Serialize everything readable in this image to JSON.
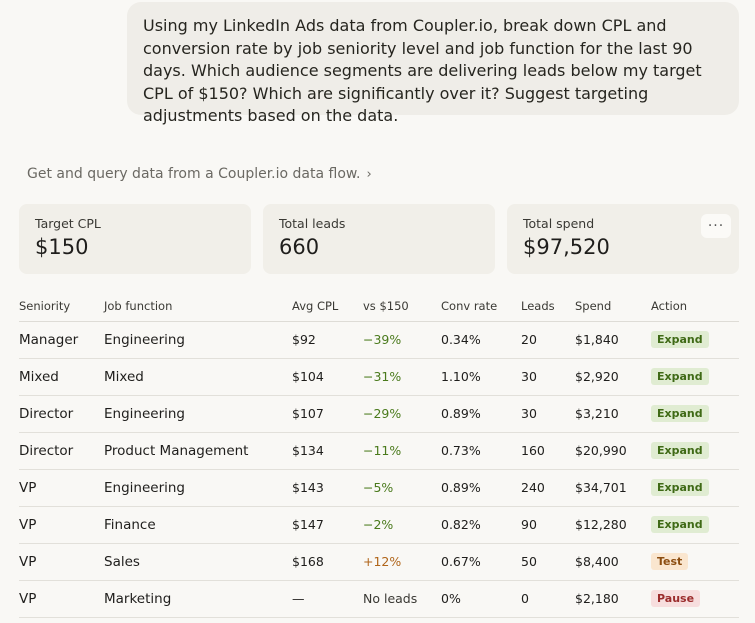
{
  "user_message": "Using my LinkedIn Ads data from Coupler.io, break down CPL and conversion rate by job seniority level and job function for the last 90 days. Which audience segments are delivering leads below my target CPL of $150? Which are significantly over it? Suggest targeting adjustments based on the data.",
  "tool_call": {
    "label": "Get and query data from a Coupler.io data flow.",
    "chevron": "›"
  },
  "cards": [
    {
      "label": "Target CPL",
      "value": "$150"
    },
    {
      "label": "Total leads",
      "value": "660"
    },
    {
      "label": "Total spend",
      "value": "$97,520",
      "menu": "···"
    }
  ],
  "table": {
    "headers": [
      "Seniority",
      "Job function",
      "Avg CPL",
      "vs $150",
      "Conv rate",
      "Leads",
      "Spend",
      "Action"
    ],
    "rows": [
      {
        "seniority": "Manager",
        "function": "Engineering",
        "cpl": "$92",
        "vs": "−39%",
        "vs_dir": "neg",
        "conv": "0.34%",
        "leads": "20",
        "spend": "$1,840",
        "action": "Expand",
        "action_type": "expand"
      },
      {
        "seniority": "Mixed",
        "function": "Mixed",
        "cpl": "$104",
        "vs": "−31%",
        "vs_dir": "neg",
        "conv": "1.10%",
        "leads": "30",
        "spend": "$2,920",
        "action": "Expand",
        "action_type": "expand"
      },
      {
        "seniority": "Director",
        "function": "Engineering",
        "cpl": "$107",
        "vs": "−29%",
        "vs_dir": "neg",
        "conv": "0.89%",
        "leads": "30",
        "spend": "$3,210",
        "action": "Expand",
        "action_type": "expand"
      },
      {
        "seniority": "Director",
        "function": "Product Management",
        "cpl": "$134",
        "vs": "−11%",
        "vs_dir": "neg",
        "conv": "0.73%",
        "leads": "160",
        "spend": "$20,990",
        "action": "Expand",
        "action_type": "expand"
      },
      {
        "seniority": "VP",
        "function": "Engineering",
        "cpl": "$143",
        "vs": "−5%",
        "vs_dir": "neg",
        "conv": "0.89%",
        "leads": "240",
        "spend": "$34,701",
        "action": "Expand",
        "action_type": "expand"
      },
      {
        "seniority": "VP",
        "function": "Finance",
        "cpl": "$147",
        "vs": "−2%",
        "vs_dir": "neg",
        "conv": "0.82%",
        "leads": "90",
        "spend": "$12,280",
        "action": "Expand",
        "action_type": "expand"
      },
      {
        "seniority": "VP",
        "function": "Sales",
        "cpl": "$168",
        "vs": "+12%",
        "vs_dir": "pos",
        "conv": "0.67%",
        "leads": "50",
        "spend": "$8,400",
        "action": "Test",
        "action_type": "test"
      },
      {
        "seniority": "VP",
        "function": "Marketing",
        "cpl": "—",
        "vs": "No leads",
        "vs_dir": "nolead",
        "conv": "0%",
        "leads": "0",
        "spend": "$2,180",
        "action": "Pause",
        "action_type": "pause"
      }
    ]
  },
  "colors": {
    "expand": "#3f6a16",
    "test": "#8c4d10",
    "pause": "#9b2c2c",
    "negative_delta": "#4a7a1c",
    "positive_delta": "#b0651a"
  }
}
